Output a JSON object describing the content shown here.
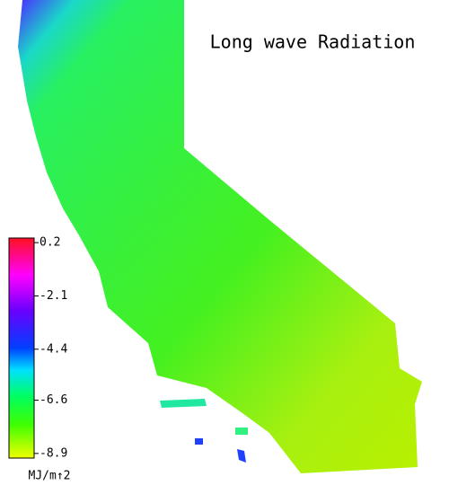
{
  "title": "Long wave Radiation",
  "colorbar": {
    "ticks": [
      0.2,
      -2.1,
      -4.4,
      -6.6,
      -8.9
    ],
    "lim": [
      -9.1,
      0.4
    ],
    "unit": "MJ/m↑2"
  }
}
